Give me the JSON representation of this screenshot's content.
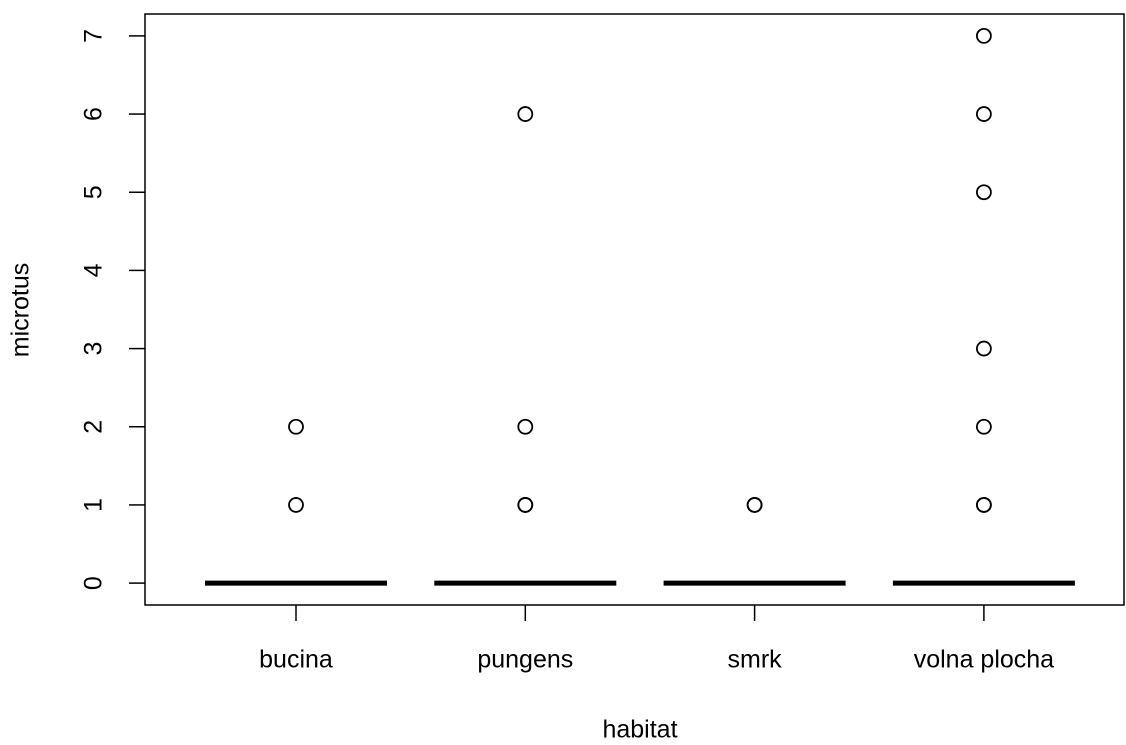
{
  "chart_data": {
    "type": "box",
    "x_label": "habitat",
    "y_label": "microtus",
    "categories": [
      "bucina",
      "pungens",
      "smrk",
      "volna plocha"
    ],
    "boxes": [
      {
        "min": 0,
        "q1": 0,
        "median": 0,
        "q3": 0,
        "max": 0,
        "outliers": [
          1,
          2
        ]
      },
      {
        "min": 0,
        "q1": 0,
        "median": 0,
        "q3": 0,
        "max": 0,
        "outliers": [
          1,
          1,
          2,
          6
        ]
      },
      {
        "min": 0,
        "q1": 0,
        "median": 0,
        "q3": 0,
        "max": 0,
        "outliers": [
          1,
          1
        ]
      },
      {
        "min": 0,
        "q1": 0,
        "median": 0,
        "q3": 0,
        "max": 0,
        "outliers": [
          1,
          1,
          2,
          3,
          5,
          6,
          7
        ]
      }
    ],
    "ylim": [
      -0.28,
      7.28
    ],
    "yticks": [
      0,
      1,
      2,
      3,
      4,
      5,
      6,
      7
    ],
    "grid": false
  }
}
